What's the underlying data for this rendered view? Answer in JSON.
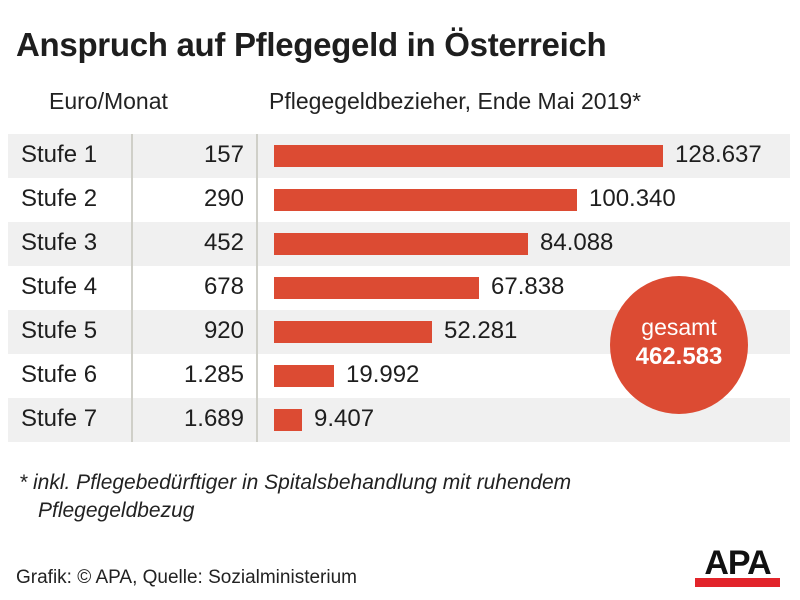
{
  "title": "Anspruch auf Pflegegeld in Österreich",
  "headers": {
    "euro": "Euro/Monat",
    "count": "Pflegegeldbezieher, Ende Mai 2019*"
  },
  "colors": {
    "accent": "#dc4b33",
    "row_alt": "#f0f0f0",
    "logo_red": "#e2242a"
  },
  "chart_data": {
    "type": "bar",
    "orientation": "horizontal",
    "title": "Anspruch auf Pflegegeld in Österreich",
    "xlabel": "Pflegegeldbezieher, Ende Mai 2019*",
    "ylabel": "",
    "categories": [
      "Stufe 1",
      "Stufe 2",
      "Stufe 3",
      "Stufe 4",
      "Stufe 5",
      "Stufe 6",
      "Stufe 7"
    ],
    "euro_per_month": [
      "157",
      "290",
      "452",
      "678",
      "920",
      "1.285",
      "1.689"
    ],
    "values": [
      128637,
      100340,
      84088,
      67838,
      52281,
      19992,
      9407
    ],
    "value_labels": [
      "128.637",
      "100.340",
      "84.088",
      "67.838",
      "52.281",
      "19.992",
      "9.407"
    ],
    "xlim": [
      0,
      128637
    ],
    "grid": false,
    "legend": "none",
    "total": {
      "label": "gesamt",
      "value": 462583,
      "value_label": "462.583"
    }
  },
  "footnote": {
    "line1": "* inkl.  Pflegebedürftiger in Spitalsbehandlung mit ruhendem",
    "line2": "Pflegegeldbezug"
  },
  "source": "Grafik: © APA, Quelle: Sozialministerium",
  "logo": {
    "text": "APA"
  }
}
